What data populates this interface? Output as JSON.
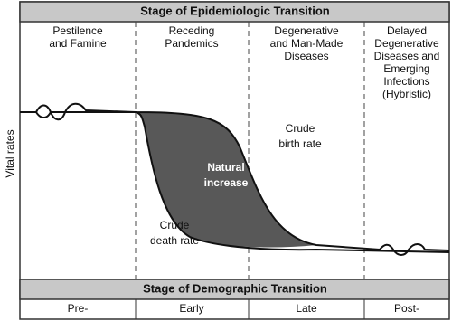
{
  "header": {
    "title": "Stage of Epidemiologic Transition"
  },
  "stages": [
    {
      "lines": [
        "Pestilence",
        "and Famine"
      ]
    },
    {
      "lines": [
        "Receding",
        "Pandemics"
      ]
    },
    {
      "lines": [
        "Degenerative",
        "and Man-Made",
        "Diseases"
      ]
    },
    {
      "lines": [
        "Delayed",
        "Degenerative",
        "Diseases and",
        "Emerging",
        "Infections",
        "(Hybristic)"
      ]
    }
  ],
  "y_axis_label": "Vital rates",
  "annotations": {
    "natural_increase": [
      "Natural",
      "increase"
    ],
    "birth_rate": [
      "Crude",
      "birth rate"
    ],
    "death_rate": [
      "Crude",
      "death rate"
    ]
  },
  "footer": {
    "title": "Stage of Demographic Transition",
    "phases": [
      "Pre-",
      "Early",
      "Late",
      "Post-"
    ]
  }
}
